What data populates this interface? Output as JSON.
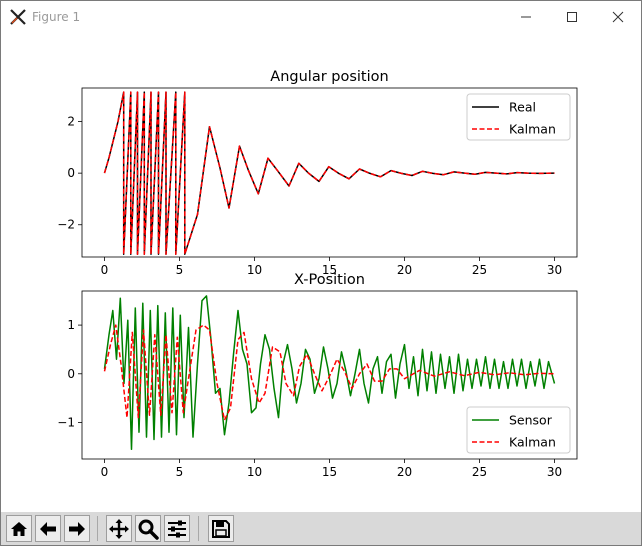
{
  "window": {
    "title": "Figure 1",
    "controls": [
      "minimize",
      "maximize",
      "close"
    ]
  },
  "toolbar": {
    "buttons": [
      "home-icon",
      "back-arrow-icon",
      "forward-arrow-icon",
      "pan-move-icon",
      "zoom-magnifier-icon",
      "configure-subplots-icon",
      "save-floppy-icon"
    ]
  },
  "colors": {
    "real": "#000000",
    "kalman": "#ff0000",
    "sensor": "#008000",
    "toolbar_bg": "#d9d9d9"
  },
  "chart_data": [
    {
      "type": "line",
      "title": "Angular position",
      "xlim": [
        -1.5,
        31.5
      ],
      "ylim": [
        -3.25,
        3.3
      ],
      "xticks": [
        0,
        5,
        10,
        15,
        20,
        25,
        30
      ],
      "yticks": [
        -2,
        0,
        2
      ],
      "legend_position": "top-right",
      "series": [
        {
          "name": "Real",
          "color": "#000000",
          "style": "solid",
          "x": [
            0,
            0.3,
            0.6,
            0.9,
            1.28,
            1.28,
            1.75,
            1.75,
            2.2,
            2.2,
            2.65,
            2.65,
            3.1,
            3.1,
            3.6,
            3.6,
            4.1,
            4.1,
            4.75,
            4.75,
            5.35,
            5.35,
            6.2,
            7.0,
            7.7,
            8.3,
            9.0,
            9.6,
            10.25,
            10.9,
            11.6,
            12.3,
            12.95,
            13.6,
            14.3,
            14.95,
            15.65,
            16.3,
            17.0,
            17.7,
            18.4,
            19.1,
            19.8,
            20.5,
            21.2,
            21.9,
            22.6,
            23.3,
            24.0,
            24.7,
            25.4,
            26.1,
            26.8,
            27.5,
            28.2,
            29.0,
            30.0
          ],
          "y": [
            0,
            0.6,
            1.3,
            2.0,
            3.14,
            -3.14,
            3.14,
            -3.14,
            3.14,
            -3.14,
            3.14,
            -3.14,
            3.14,
            -3.14,
            3.14,
            -3.14,
            3.14,
            -3.14,
            3.14,
            -3.14,
            3.14,
            -3.14,
            -1.6,
            1.8,
            0.2,
            -1.35,
            1.05,
            0.1,
            -0.8,
            0.58,
            0.05,
            -0.5,
            0.38,
            0.0,
            -0.32,
            0.25,
            -0.02,
            -0.22,
            0.16,
            -0.01,
            -0.14,
            0.1,
            -0.01,
            -0.09,
            0.07,
            -0.01,
            -0.06,
            0.05,
            0.0,
            -0.04,
            0.03,
            0.0,
            -0.03,
            0.02,
            0.0,
            -0.01,
            0.0
          ]
        },
        {
          "name": "Kalman",
          "color": "#ff0000",
          "style": "dashed",
          "x": [
            0,
            0.3,
            0.6,
            0.9,
            1.28,
            1.28,
            1.75,
            1.75,
            2.2,
            2.2,
            2.65,
            2.65,
            3.1,
            3.1,
            3.6,
            3.6,
            4.1,
            4.1,
            4.75,
            4.75,
            5.35,
            5.35,
            6.2,
            7.0,
            7.7,
            8.3,
            9.0,
            9.6,
            10.25,
            10.9,
            11.6,
            12.3,
            12.95,
            13.6,
            14.3,
            14.95,
            15.65,
            16.3,
            17.0,
            17.7,
            18.4,
            19.1,
            19.8,
            20.5,
            21.2,
            21.9,
            22.6,
            23.3,
            24.0,
            24.7,
            25.4,
            26.1,
            26.8,
            27.5,
            28.2,
            29.0,
            30.0
          ],
          "y": [
            0,
            0.6,
            1.3,
            2.0,
            3.14,
            -3.14,
            3.14,
            -3.14,
            3.14,
            -3.14,
            3.14,
            -3.14,
            3.14,
            -3.14,
            3.14,
            -3.14,
            3.14,
            -3.14,
            3.14,
            -3.14,
            3.14,
            -3.14,
            -1.6,
            1.8,
            0.2,
            -1.35,
            1.05,
            0.1,
            -0.8,
            0.58,
            0.05,
            -0.5,
            0.38,
            0.0,
            -0.32,
            0.25,
            -0.02,
            -0.22,
            0.16,
            -0.01,
            -0.14,
            0.1,
            -0.01,
            -0.09,
            0.07,
            -0.01,
            -0.06,
            0.05,
            0.0,
            -0.04,
            0.03,
            0.0,
            -0.03,
            0.02,
            0.0,
            -0.01,
            0.0
          ]
        }
      ]
    },
    {
      "type": "line",
      "title": "X-Position",
      "xlim": [
        -1.5,
        31.5
      ],
      "ylim": [
        -1.75,
        1.7
      ],
      "xticks": [
        0,
        5,
        10,
        15,
        20,
        25,
        30
      ],
      "yticks": [
        -1,
        0,
        1
      ],
      "legend_position": "bottom-right",
      "series": [
        {
          "name": "Sensor",
          "color": "#008000",
          "style": "solid",
          "x": [
            0,
            0.3,
            0.55,
            0.8,
            1.05,
            1.3,
            1.55,
            1.8,
            2.05,
            2.3,
            2.55,
            2.8,
            3.05,
            3.3,
            3.55,
            3.8,
            4.05,
            4.3,
            4.55,
            4.8,
            5.05,
            5.3,
            5.6,
            5.9,
            6.2,
            6.5,
            6.8,
            7.1,
            7.4,
            7.7,
            8.0,
            8.3,
            8.6,
            8.9,
            9.2,
            9.5,
            9.8,
            10.1,
            10.4,
            10.7,
            11.0,
            11.3,
            11.6,
            11.9,
            12.2,
            12.5,
            12.8,
            13.1,
            13.4,
            13.7,
            14.0,
            14.3,
            14.6,
            14.9,
            15.2,
            15.5,
            15.8,
            16.1,
            16.4,
            16.7,
            17.0,
            17.3,
            17.6,
            17.9,
            18.2,
            18.5,
            18.8,
            19.1,
            19.4,
            19.7,
            20.0,
            20.3,
            20.6,
            20.9,
            21.2,
            21.5,
            21.8,
            22.1,
            22.4,
            22.7,
            23.0,
            23.3,
            23.6,
            23.9,
            24.2,
            24.5,
            24.8,
            25.1,
            25.4,
            25.7,
            26.0,
            26.3,
            26.6,
            26.9,
            27.2,
            27.5,
            27.8,
            28.1,
            28.4,
            28.7,
            29.0,
            29.3,
            29.6,
            30.0
          ],
          "y": [
            0.1,
            0.8,
            1.3,
            0.3,
            1.55,
            -0.2,
            1.1,
            -1.55,
            1.35,
            -1.2,
            1.45,
            -1.3,
            1.3,
            -1.35,
            1.4,
            -1.3,
            1.25,
            -1.2,
            1.35,
            -1.25,
            1.2,
            -0.9,
            0.95,
            -1.3,
            0.2,
            1.5,
            1.6,
            0.7,
            -0.4,
            -0.3,
            -1.25,
            -0.6,
            0.4,
            1.3,
            0.5,
            0.2,
            -0.8,
            -0.7,
            0.2,
            0.8,
            0.5,
            -0.3,
            -0.9,
            0.2,
            0.6,
            0.1,
            -0.6,
            -0.2,
            0.5,
            0.3,
            -0.4,
            -0.1,
            0.55,
            0.1,
            -0.5,
            -0.2,
            0.45,
            0.05,
            -0.45,
            0.0,
            0.5,
            -0.2,
            -0.6,
            0.1,
            0.35,
            -0.4,
            0.25,
            0.4,
            -0.5,
            0.2,
            0.6,
            -0.3,
            0.35,
            -0.45,
            0.5,
            -0.35,
            0.45,
            -0.4,
            0.4,
            -0.3,
            0.35,
            -0.4,
            0.4,
            -0.35,
            0.3,
            -0.3,
            0.3,
            -0.25,
            0.35,
            -0.3,
            0.3,
            -0.3,
            0.25,
            -0.3,
            0.3,
            -0.25,
            0.3,
            -0.3,
            0.25,
            -0.25,
            0.3,
            -0.3,
            0.25,
            -0.2
          ]
        },
        {
          "name": "Kalman",
          "color": "#ff0000",
          "style": "dashed",
          "x": [
            0,
            0.4,
            0.75,
            1.1,
            1.5,
            1.85,
            2.25,
            2.6,
            3.0,
            3.35,
            3.75,
            4.1,
            4.5,
            4.85,
            5.25,
            5.7,
            6.1,
            6.6,
            7.0,
            7.5,
            8.0,
            8.4,
            8.9,
            9.3,
            9.8,
            10.3,
            10.7,
            11.2,
            11.7,
            12.1,
            12.6,
            13.0,
            13.5,
            14.0,
            14.5,
            15.0,
            15.5,
            16.0,
            16.5,
            17.0,
            17.5,
            18.0,
            18.5,
            19.0,
            19.5,
            20.0,
            21.0,
            22.0,
            23.0,
            24.0,
            25.0,
            26.0,
            27.0,
            28.0,
            29.0,
            30.0
          ],
          "y": [
            0.05,
            0.6,
            1.0,
            0.2,
            -0.9,
            0.85,
            -0.9,
            0.9,
            -0.85,
            0.8,
            -0.85,
            0.8,
            -0.8,
            0.75,
            -0.8,
            0.1,
            0.9,
            1.0,
            0.9,
            -0.2,
            -0.95,
            -0.7,
            0.7,
            0.85,
            -0.1,
            -0.6,
            -0.4,
            0.55,
            0.45,
            -0.2,
            -0.45,
            0.15,
            0.4,
            0.0,
            -0.35,
            -0.05,
            0.3,
            0.05,
            -0.3,
            0.0,
            0.2,
            -0.15,
            -0.15,
            0.1,
            0.1,
            -0.1,
            0.07,
            -0.05,
            0.04,
            -0.04,
            0.03,
            -0.02,
            0.02,
            -0.02,
            0.01,
            0.0
          ]
        }
      ]
    }
  ]
}
